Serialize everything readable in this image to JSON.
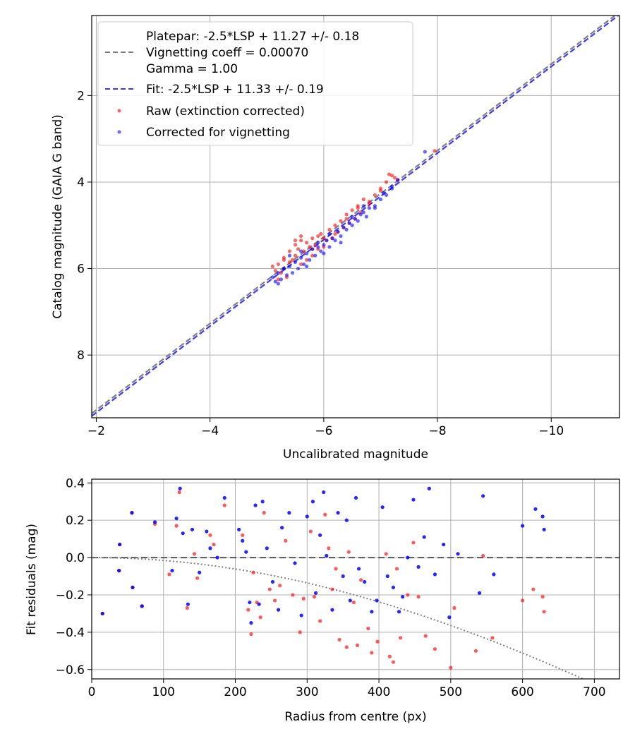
{
  "colors": {
    "raw": "#ff0000",
    "corrected": "#0000ff",
    "platepar_line": "#7f7f7f",
    "fit_line": "#3a3aff",
    "grid": "#b0b0b0",
    "dotted": "#808080"
  },
  "chart_data": [
    {
      "type": "scatter",
      "xlabel": "Uncalibrated magnitude",
      "ylabel": "Catalog magnitude (GAIA G band)",
      "xlim": [
        -1.92,
        -11.2
      ],
      "ylim": [
        9.45,
        0.15
      ],
      "x_inverted": true,
      "y_inverted": true,
      "grid": true,
      "x_ticks": [
        -2,
        -4,
        -6,
        -8,
        -10
      ],
      "x_tick_labels": [
        "−2",
        "−4",
        "−6",
        "−8",
        "−10"
      ],
      "y_ticks": [
        2,
        4,
        6,
        8
      ],
      "y_tick_labels": [
        "2",
        "4",
        "6",
        "8"
      ],
      "legend_position": "top-left",
      "legend": [
        {
          "kind": "text",
          "label": "Platepar: -2.5*LSP + 11.27 +/- 0.18"
        },
        {
          "kind": "dashed-gray",
          "label": "Vignetting coeff = 0.00070"
        },
        {
          "kind": "text",
          "label": "Gamma = 1.00"
        },
        {
          "kind": "dashed-blue",
          "label": "Fit: -2.5*LSP + 11.33 +/- 0.19"
        },
        {
          "kind": "dot-red",
          "label": "Raw (extinction corrected)"
        },
        {
          "kind": "dot-blue",
          "label": "Corrected for vignetting"
        }
      ],
      "lines": [
        {
          "name": "Platepar",
          "slope": 1.0,
          "intercept": 11.27,
          "style": "dashed",
          "color": "gray"
        },
        {
          "name": "Fit",
          "slope": 1.0,
          "intercept": 11.33,
          "style": "dashed",
          "color": "blue"
        }
      ],
      "series": [
        {
          "name": "Raw (extinction corrected)",
          "x": [
            -5.1,
            -5.15,
            -5.2,
            -5.25,
            -5.3,
            -5.3,
            -5.35,
            -5.4,
            -5.4,
            -5.45,
            -5.5,
            -5.5,
            -5.55,
            -5.6,
            -5.6,
            -5.65,
            -5.7,
            -5.7,
            -5.75,
            -5.8,
            -5.8,
            -5.85,
            -5.9,
            -5.95,
            -6.0,
            -6.05,
            -6.1,
            -6.15,
            -6.2,
            -6.25,
            -6.3,
            -6.35,
            -6.4,
            -6.45,
            -6.5,
            -6.55,
            -6.6,
            -6.65,
            -6.7,
            -6.8,
            -6.9,
            -7.0,
            -7.1,
            -7.2,
            -7.3,
            -5.2,
            -5.3,
            -5.5,
            -5.6,
            -5.8,
            -5.9,
            -6.0,
            -6.2,
            -6.4,
            -6.6,
            -6.8,
            -7.0,
            -7.15,
            -7.25,
            -7.95
          ],
          "y": [
            5.95,
            6.05,
            6.25,
            6.1,
            5.75,
            6.0,
            6.2,
            5.6,
            5.85,
            5.8,
            5.35,
            5.7,
            5.55,
            5.25,
            5.9,
            5.6,
            5.4,
            5.8,
            5.5,
            5.3,
            5.7,
            5.45,
            5.55,
            5.2,
            5.5,
            5.35,
            5.1,
            5.3,
            5.0,
            5.15,
            4.9,
            5.05,
            4.75,
            4.95,
            4.65,
            4.85,
            4.55,
            4.7,
            4.4,
            4.5,
            4.3,
            4.15,
            4.0,
            3.85,
            3.95,
            5.9,
            5.8,
            5.45,
            5.35,
            5.55,
            5.25,
            5.3,
            5.2,
            4.85,
            4.6,
            4.45,
            4.2,
            3.82,
            3.9,
            3.28
          ]
        },
        {
          "name": "Corrected for vignetting",
          "x": [
            -5.1,
            -5.15,
            -5.2,
            -5.25,
            -5.3,
            -5.35,
            -5.4,
            -5.45,
            -5.5,
            -5.55,
            -5.6,
            -5.65,
            -5.7,
            -5.75,
            -5.8,
            -5.85,
            -5.9,
            -5.95,
            -6.0,
            -6.05,
            -6.1,
            -6.15,
            -6.2,
            -6.25,
            -6.3,
            -6.35,
            -6.4,
            -6.45,
            -6.5,
            -6.55,
            -6.6,
            -6.65,
            -6.7,
            -6.75,
            -6.8,
            -6.9,
            -7.0,
            -7.1,
            -7.2,
            -7.3,
            -5.2,
            -5.3,
            -5.4,
            -5.6,
            -5.7,
            -5.9,
            -6.0,
            -6.1,
            -6.3,
            -6.5,
            -6.7,
            -6.9,
            -7.05,
            -7.2,
            -7.78
          ],
          "y": [
            6.2,
            6.3,
            6.1,
            6.25,
            6.0,
            6.15,
            5.95,
            6.1,
            5.85,
            6.0,
            5.75,
            5.9,
            5.65,
            5.8,
            5.55,
            5.7,
            5.5,
            5.6,
            5.45,
            5.35,
            5.5,
            5.3,
            5.35,
            5.15,
            5.25,
            5.05,
            5.1,
            4.95,
            5.0,
            4.85,
            4.9,
            4.75,
            4.7,
            4.8,
            4.6,
            4.55,
            4.4,
            4.3,
            4.15,
            3.95,
            6.35,
            6.0,
            5.7,
            5.6,
            5.95,
            5.4,
            5.65,
            5.2,
            5.4,
            4.8,
            4.55,
            4.6,
            4.25,
            4.1,
            3.3
          ]
        }
      ]
    },
    {
      "type": "scatter",
      "xlabel": "Radius from centre (px)",
      "ylabel": "Fit residuals (mag)",
      "xlim": [
        0,
        735
      ],
      "ylim": [
        -0.65,
        0.42
      ],
      "grid": true,
      "x_ticks": [
        0,
        100,
        200,
        300,
        400,
        500,
        600,
        700
      ],
      "x_tick_labels": [
        "0",
        "100",
        "200",
        "300",
        "400",
        "500",
        "600",
        "700"
      ],
      "y_ticks": [
        0.4,
        0.2,
        0.0,
        -0.2,
        -0.4,
        -0.6
      ],
      "y_tick_labels": [
        "0.4",
        "0.2",
        "0.0",
        "−0.2",
        "−0.4",
        "−0.6"
      ],
      "hline": {
        "y": 0.0,
        "style": "dashed"
      },
      "vignetting_curve": {
        "coeff": 0.0007,
        "style": "dotted"
      },
      "series": [
        {
          "name": "Raw (extinction corrected)",
          "x": [
            15,
            38,
            39,
            56,
            57,
            70,
            88,
            108,
            118,
            122,
            133,
            143,
            147,
            165,
            170,
            185,
            210,
            218,
            222,
            225,
            230,
            235,
            240,
            248,
            255,
            262,
            270,
            280,
            290,
            295,
            305,
            310,
            318,
            325,
            330,
            335,
            340,
            345,
            355,
            358,
            365,
            370,
            375,
            385,
            390,
            398,
            410,
            415,
            420,
            425,
            430,
            440,
            448,
            455,
            465,
            478,
            500,
            505,
            535,
            545,
            558,
            600,
            615,
            628,
            630
          ],
          "y": [
            -0.3,
            -0.07,
            0.07,
            0.24,
            -0.16,
            -0.26,
            0.18,
            -0.09,
            0.17,
            0.35,
            -0.27,
            0.02,
            -0.11,
            0.12,
            0.07,
            0.28,
            0.12,
            -0.28,
            -0.41,
            -0.08,
            -0.24,
            -0.32,
            0.24,
            -0.17,
            -0.23,
            -0.15,
            0.09,
            -0.2,
            -0.4,
            -0.22,
            0.14,
            -0.21,
            -0.34,
            0.23,
            0.05,
            -0.17,
            -0.06,
            -0.44,
            -0.48,
            0.03,
            -0.24,
            -0.47,
            -0.12,
            -0.38,
            -0.51,
            -0.45,
            0.02,
            -0.53,
            -0.56,
            -0.06,
            -0.43,
            -0.2,
            0.08,
            -0.21,
            -0.42,
            -0.49,
            -0.59,
            -0.27,
            -0.5,
            0.01,
            -0.43,
            -0.23,
            -0.17,
            -0.21,
            -0.29
          ]
        },
        {
          "name": "Corrected for vignetting",
          "x": [
            15,
            38,
            39,
            56,
            57,
            70,
            88,
            112,
            118,
            123,
            127,
            134,
            140,
            150,
            160,
            165,
            175,
            185,
            205,
            210,
            215,
            220,
            222,
            228,
            233,
            238,
            244,
            252,
            260,
            265,
            275,
            283,
            292,
            300,
            308,
            312,
            318,
            323,
            327,
            335,
            343,
            350,
            355,
            360,
            368,
            372,
            380,
            390,
            397,
            405,
            412,
            420,
            428,
            433,
            440,
            448,
            455,
            463,
            470,
            478,
            490,
            498,
            510,
            540,
            545,
            560,
            600,
            618,
            628,
            630
          ],
          "y": [
            -0.3,
            -0.07,
            0.07,
            0.24,
            -0.16,
            -0.26,
            0.19,
            -0.07,
            0.21,
            0.37,
            0.13,
            -0.25,
            0.15,
            -0.08,
            0.14,
            0.05,
            0.0,
            0.32,
            0.15,
            0.09,
            0.03,
            -0.24,
            -0.35,
            0.28,
            -0.25,
            0.3,
            0.05,
            -0.13,
            -0.28,
            0.16,
            0.24,
            -0.03,
            -0.31,
            0.22,
            0.3,
            -0.19,
            0.12,
            0.35,
            0.01,
            -0.28,
            0.24,
            -0.1,
            0.2,
            -0.23,
            0.32,
            -0.06,
            -0.13,
            -0.29,
            -0.23,
            0.27,
            -0.1,
            -0.16,
            -0.29,
            -0.21,
            0.0,
            0.31,
            -0.05,
            0.11,
            0.37,
            -0.09,
            0.07,
            -0.32,
            0.02,
            -0.19,
            0.33,
            -0.09,
            0.17,
            0.26,
            0.22,
            0.15
          ]
        }
      ]
    }
  ]
}
